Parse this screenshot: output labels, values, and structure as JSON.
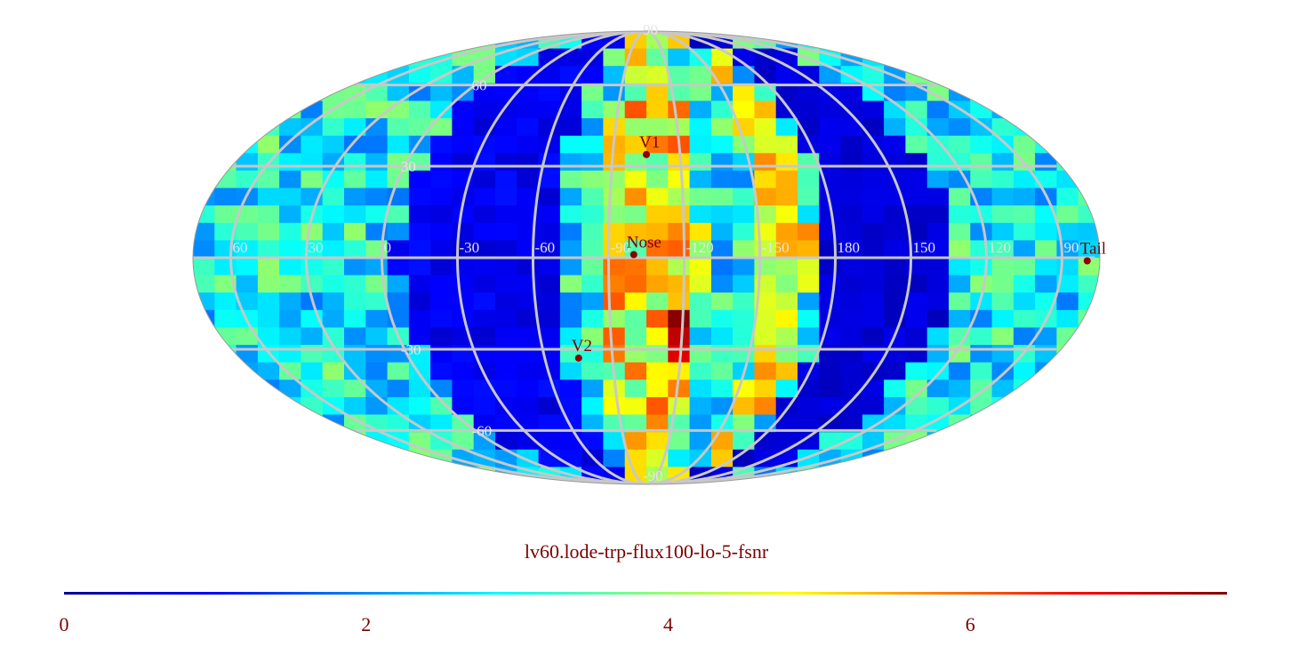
{
  "title": "lv60.lode-trp-flux100-lo-5-fsnr",
  "projection": "mollweide",
  "colormap": "jet",
  "colors": {
    "grid": "#c8c8c8",
    "grid_label": "#e6e6e6",
    "marker": "#8b0000",
    "text": "#7a0000"
  },
  "longitude_labels": [
    {
      "text": "60",
      "lon": 60
    },
    {
      "text": "30",
      "lon": 30
    },
    {
      "text": "0",
      "lon": 0
    },
    {
      "text": "-30",
      "lon": -30
    },
    {
      "text": "-60",
      "lon": -60
    },
    {
      "text": "-90",
      "lon": -90
    },
    {
      "text": "-120",
      "lon": -120
    },
    {
      "text": "-150",
      "lon": -150
    },
    {
      "text": "180",
      "lon": 180
    },
    {
      "text": "150",
      "lon": 150
    },
    {
      "text": "120",
      "lon": 120
    },
    {
      "text": "90",
      "lon": 90
    }
  ],
  "latitude_labels": [
    {
      "text": "90",
      "lat": 90
    },
    {
      "text": "60",
      "lat": 60
    },
    {
      "text": "30",
      "lat": 30
    },
    {
      "text": "-30",
      "lat": -30
    },
    {
      "text": "-60",
      "lat": -60
    },
    {
      "text": "-90",
      "lat": -90
    }
  ],
  "markers": [
    {
      "label": "V1",
      "lon": -105,
      "lat": 34
    },
    {
      "label": "Nose",
      "lon": -100,
      "lat": 1
    },
    {
      "label": "V2",
      "lon": -75,
      "lat": -33
    },
    {
      "label": "Tail",
      "lon": 80,
      "lat": -1
    }
  ],
  "colorbar": {
    "min": 0,
    "max": 7.7,
    "ticks": [
      "0",
      "2",
      "4",
      "6"
    ]
  }
}
